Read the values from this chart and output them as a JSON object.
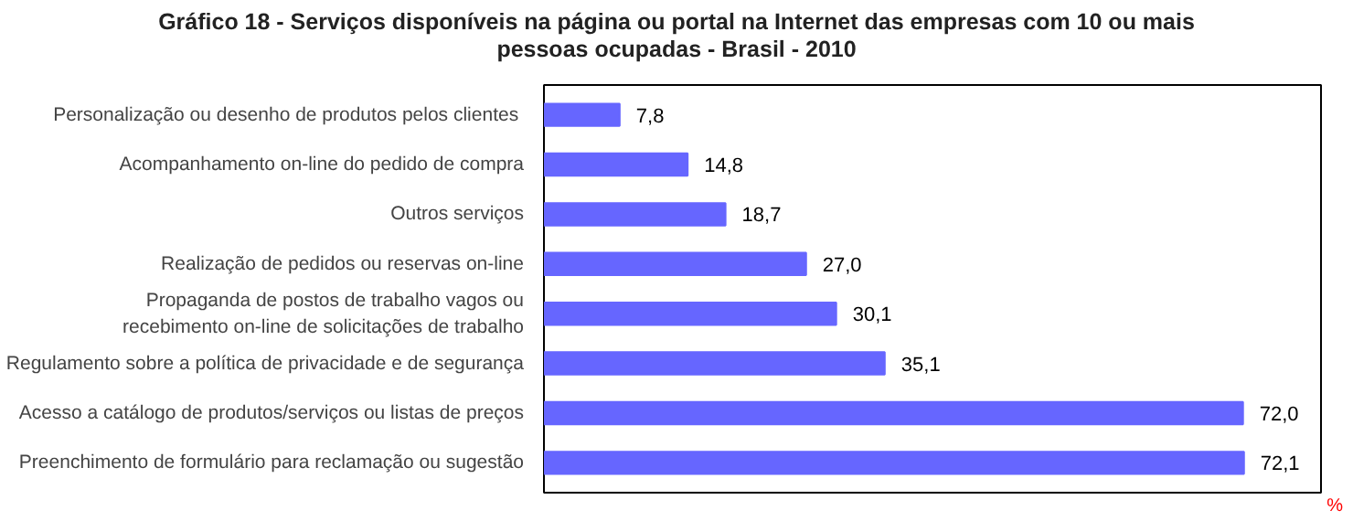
{
  "chart_data": {
    "type": "bar",
    "orientation": "horizontal",
    "title": "Gráfico 18 - Serviços disponíveis na página ou portal na Internet das empresas com 10 ou mais pessoas ocupadas - Brasil - 2010",
    "categories": [
      "Personalização  ou desenho de produtos pelos clientes",
      "Acompanhamento on-line do pedido de compra",
      "Outros serviços",
      "Realização de pedidos ou reservas on-line",
      "Propaganda de postos de trabalho vagos ou\nrecebimento on-line de solicitações de trabalho",
      "Regulamento sobre a política de privacidade e de segurança",
      "Acesso a catálogo de produtos/serviços ou listas de preços",
      "Preenchimento de formulário para reclamação ou sugestão"
    ],
    "values": [
      7.8,
      14.8,
      18.7,
      27.0,
      30.1,
      35.1,
      72.0,
      72.1
    ],
    "value_labels": [
      "7,8",
      "14,8",
      "18,7",
      "27,0",
      "30,1",
      "35,1",
      "72,0",
      "72,1"
    ],
    "color": "#6666ff",
    "grid": false,
    "annotations": [
      "%"
    ]
  }
}
